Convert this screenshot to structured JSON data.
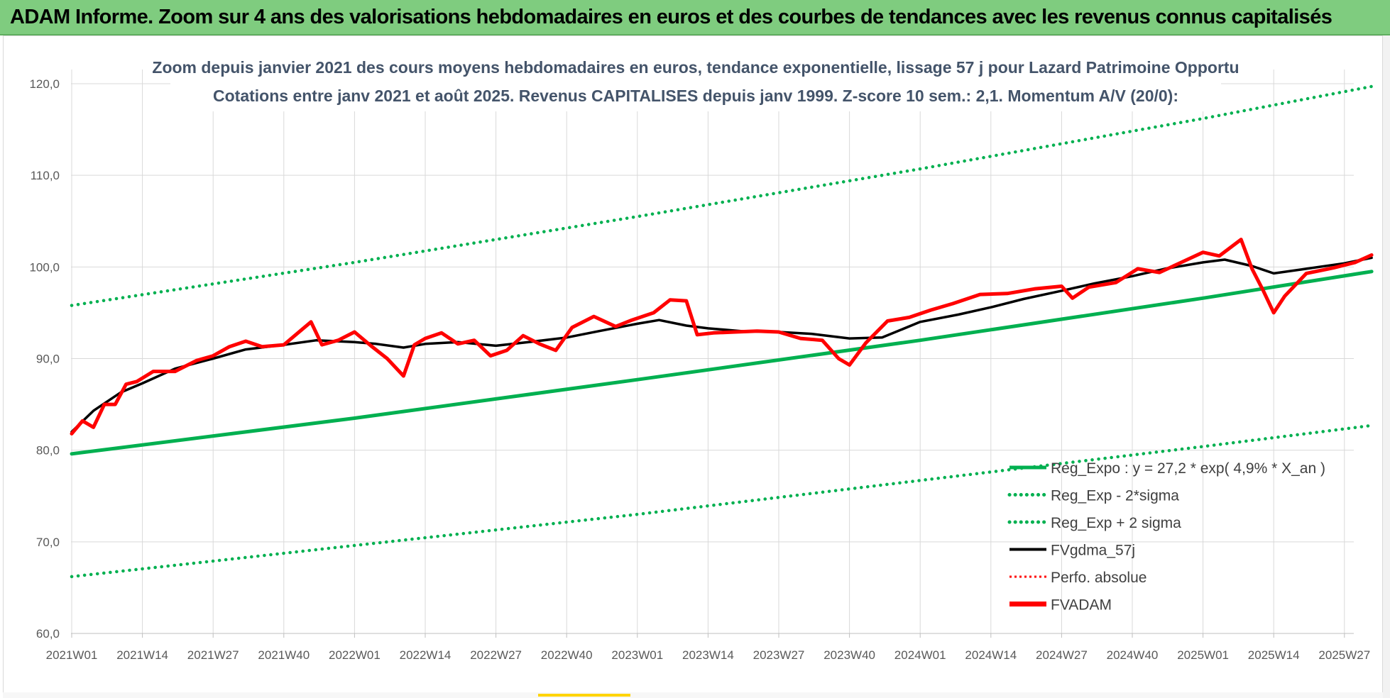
{
  "banner": {
    "title": "ADAM Informe. Zoom sur 4 ans des valorisations hebdomadaires en euros et des courbes de tendances avec les revenus connus capitalisés"
  },
  "colors": {
    "banner_bg": "#7fcc7f",
    "reg_expo": "#00b050",
    "fvgdma": "#000000",
    "perfo": "#ff0000",
    "fvadam": "#ff0000"
  },
  "chart_data": {
    "type": "line",
    "title": [
      "Zoom depuis janvier 2021 des cours moyens hebdomadaires en euros, tendance exponentielle, lissage 57 j pour Lazard Patrimoine Opportu",
      "Cotations entre janv 2021 et août 2025. Revenus CAPITALISES depuis janv 1999. Z-score 10 sem.: 2,1. Momentum A/V (20/0):"
    ],
    "xlabel": "",
    "ylabel": "",
    "ylim": [
      60,
      120
    ],
    "yticks": [
      "60,0",
      "70,0",
      "80,0",
      "90,0",
      "100,0",
      "110,0",
      "120,0"
    ],
    "xticks": [
      "2021W01",
      "2021W14",
      "2021W27",
      "2021W40",
      "2022W01",
      "2022W14",
      "2022W27",
      "2022W40",
      "2023W01",
      "2023W14",
      "2023W27",
      "2023W40",
      "2024W01",
      "2024W14",
      "2024W27",
      "2024W40",
      "2025W01",
      "2025W14",
      "2025W27"
    ],
    "grid": true,
    "legend_position": "bottom-right",
    "legend": [
      {
        "name": "Reg_Expo : y = 27,2 * exp( 4,9% *  X_an )",
        "style": "solid",
        "color": "#00b050"
      },
      {
        "name": "Reg_Exp - 2*sigma",
        "style": "dotted",
        "color": "#00b050"
      },
      {
        "name": "Reg_Exp + 2 sigma",
        "style": "dotted",
        "color": "#00b050"
      },
      {
        "name": "FVgdma_57j",
        "style": "solid",
        "color": "#000000"
      },
      {
        "name": "Perfo. absolue",
        "style": "dotted",
        "color": "#ff0000"
      },
      {
        "name": "FVADAM",
        "style": "solid",
        "color": "#ff0000"
      }
    ],
    "series": [
      {
        "name": "Reg_Expo : y = 27,2 * exp( 4,9% *  X_an )",
        "x": [
          "2021W01",
          "2022W01",
          "2023W01",
          "2024W01",
          "2025W01",
          "2025W32"
        ],
        "values": [
          79.6,
          83.5,
          87.7,
          92.0,
          96.6,
          99.5
        ]
      },
      {
        "name": "Reg_Exp - 2*sigma",
        "x": [
          "2021W01",
          "2022W01",
          "2023W01",
          "2024W01",
          "2025W01",
          "2025W32"
        ],
        "values": [
          66.2,
          69.6,
          73.0,
          76.7,
          80.4,
          82.7
        ]
      },
      {
        "name": "Reg_Exp + 2 sigma",
        "x": [
          "2021W01",
          "2022W01",
          "2023W01",
          "2024W01",
          "2025W01",
          "2025W32"
        ],
        "values": [
          95.8,
          100.5,
          105.5,
          110.7,
          116.2,
          119.7
        ]
      },
      {
        "name": "FVgdma_57j",
        "x": [
          "2021W01",
          "2021W05",
          "2021W10",
          "2021W14",
          "2021W20",
          "2021W27",
          "2021W33",
          "2021W40",
          "2021W46",
          "2022W01",
          "2022W05",
          "2022W10",
          "2022W14",
          "2022W20",
          "2022W27",
          "2022W33",
          "2022W40",
          "2022W46",
          "2023W01",
          "2023W05",
          "2023W10",
          "2023W14",
          "2023W20",
          "2023W27",
          "2023W33",
          "2023W40",
          "2023W46",
          "2024W01",
          "2024W08",
          "2024W14",
          "2024W20",
          "2024W27",
          "2024W33",
          "2024W40",
          "2024W46",
          "2025W01",
          "2025W05",
          "2025W10",
          "2025W14",
          "2025W20",
          "2025W27",
          "2025W32"
        ],
        "values": [
          82.0,
          84.3,
          86.3,
          87.3,
          88.9,
          90.0,
          91.0,
          91.5,
          92.0,
          91.8,
          91.6,
          91.2,
          91.6,
          91.8,
          91.4,
          91.8,
          92.3,
          93.0,
          93.8,
          94.2,
          93.6,
          93.3,
          93.0,
          92.9,
          92.7,
          92.2,
          92.3,
          94.0,
          94.8,
          95.6,
          96.5,
          97.4,
          98.2,
          99.0,
          99.8,
          100.5,
          100.8,
          100.1,
          99.3,
          99.8,
          100.4,
          101.0
        ]
      },
      {
        "name": "FVADAM",
        "x": [
          "2021W01",
          "2021W03",
          "2021W05",
          "2021W07",
          "2021W09",
          "2021W11",
          "2021W13",
          "2021W16",
          "2021W20",
          "2021W24",
          "2021W27",
          "2021W30",
          "2021W33",
          "2021W36",
          "2021W40",
          "2021W43",
          "2021W45",
          "2021W47",
          "2021W50",
          "2022W01",
          "2022W04",
          "2022W07",
          "2022W10",
          "2022W12",
          "2022W14",
          "2022W17",
          "2022W20",
          "2022W23",
          "2022W26",
          "2022W29",
          "2022W32",
          "2022W35",
          "2022W38",
          "2022W41",
          "2022W45",
          "2022W49",
          "2022W52",
          "2023W04",
          "2023W07",
          "2023W10",
          "2023W12",
          "2023W15",
          "2023W19",
          "2023W23",
          "2023W27",
          "2023W31",
          "2023W35",
          "2023W38",
          "2023W40",
          "2023W43",
          "2023W47",
          "2023W51",
          "2024W03",
          "2024W07",
          "2024W12",
          "2024W17",
          "2024W22",
          "2024W27",
          "2024W29",
          "2024W32",
          "2024W37",
          "2024W41",
          "2024W45",
          "2024W49",
          "2025W01",
          "2025W04",
          "2025W08",
          "2025W10",
          "2025W12",
          "2025W14",
          "2025W16",
          "2025W20",
          "2025W25",
          "2025W29",
          "2025W32"
        ],
        "values": [
          81.8,
          83.2,
          82.5,
          85.0,
          85.0,
          87.2,
          87.5,
          88.6,
          88.6,
          89.8,
          90.3,
          91.3,
          91.9,
          91.3,
          91.5,
          93.0,
          94.0,
          91.5,
          92.0,
          92.9,
          91.4,
          90.0,
          88.1,
          91.5,
          92.2,
          92.8,
          91.6,
          92.0,
          90.3,
          90.9,
          92.5,
          91.6,
          90.9,
          93.4,
          94.6,
          93.5,
          94.2,
          95.0,
          96.4,
          96.3,
          92.6,
          92.8,
          92.9,
          93.0,
          92.9,
          92.2,
          92.0,
          90.0,
          89.3,
          91.7,
          94.1,
          94.5,
          95.3,
          96.0,
          97.0,
          97.1,
          97.6,
          97.9,
          96.6,
          97.8,
          98.3,
          99.8,
          99.4,
          100.5,
          101.6,
          101.2,
          103.0,
          99.8,
          97.5,
          95.0,
          96.8,
          99.3,
          99.9,
          100.5,
          101.3
        ]
      }
    ]
  }
}
